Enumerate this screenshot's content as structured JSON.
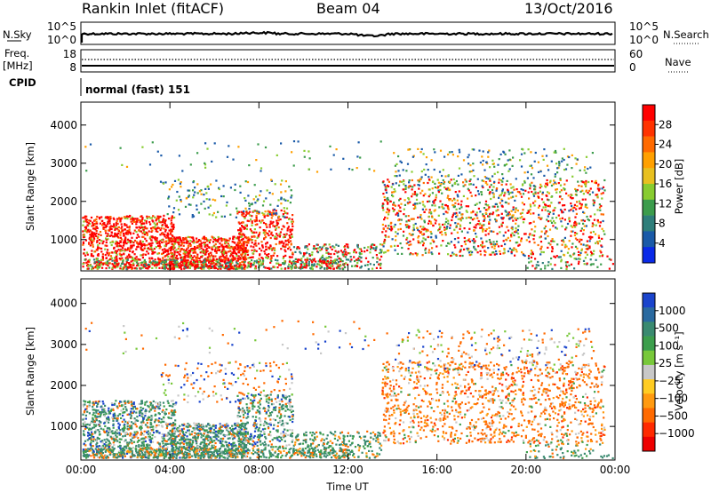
{
  "header": {
    "station": "Rankin Inlet (fitACF)",
    "beam": "Beam 04",
    "date": "13/Oct/2016"
  },
  "noise_panel": {
    "left_label": "N.Sky",
    "right_label": "N.Search",
    "left_ticks": [
      "10^5",
      "10^0"
    ],
    "right_ticks": [
      "10^5",
      "10^0"
    ]
  },
  "freq_panel": {
    "left_label_1": "Freq.",
    "left_label_2": "[MHz]",
    "right_label": "Nave",
    "left_ticks": [
      "18",
      "8"
    ],
    "right_ticks": [
      "60",
      "0"
    ]
  },
  "cpid": {
    "label": "CPID",
    "value": "normal (fast) 151"
  },
  "chart_data": [
    {
      "type": "heatmap",
      "name": "power",
      "xlabel": "",
      "ylabel": "Slant Range [km]",
      "colorbar_label": "Power [dB]",
      "colorbar_ticks": [
        "28",
        "24",
        "20",
        "16",
        "12",
        "8",
        "4"
      ],
      "colorbar_colors": [
        "#ff0000",
        "#ff3300",
        "#ff6a00",
        "#ffa000",
        "#e8c020",
        "#88cc30",
        "#3c9c4c",
        "#2e7e7a",
        "#1a5aa8",
        "#0a2ae8"
      ],
      "y_ticks": [
        "4000",
        "3000",
        "2000",
        "1000"
      ],
      "ylim": [
        180,
        4600
      ],
      "xlim_hours": [
        0,
        24
      ]
    },
    {
      "type": "heatmap",
      "name": "velocity",
      "xlabel": "Time UT",
      "ylabel": "Slant Range [km]",
      "colorbar_label": "Velocity [m s⁻¹]",
      "colorbar_ticks": [
        "1000",
        "500",
        "100",
        "25",
        "−25",
        "−100",
        "−500",
        "−1000"
      ],
      "colorbar_colors": [
        "#1a44cc",
        "#2a6aa0",
        "#3a8a70",
        "#3c9e4c",
        "#78c83a",
        "#c8c8c8",
        "#ffcc22",
        "#ff9a10",
        "#ff6a00",
        "#ff2a00",
        "#ee0000"
      ],
      "y_ticks": [
        "4000",
        "3000",
        "2000",
        "1000"
      ],
      "x_ticks": [
        "00:00",
        "04:00",
        "08:00",
        "12:00",
        "16:00",
        "20:00",
        "00:00"
      ],
      "ylim": [
        180,
        4600
      ],
      "xlim_hours": [
        0,
        24
      ]
    }
  ]
}
